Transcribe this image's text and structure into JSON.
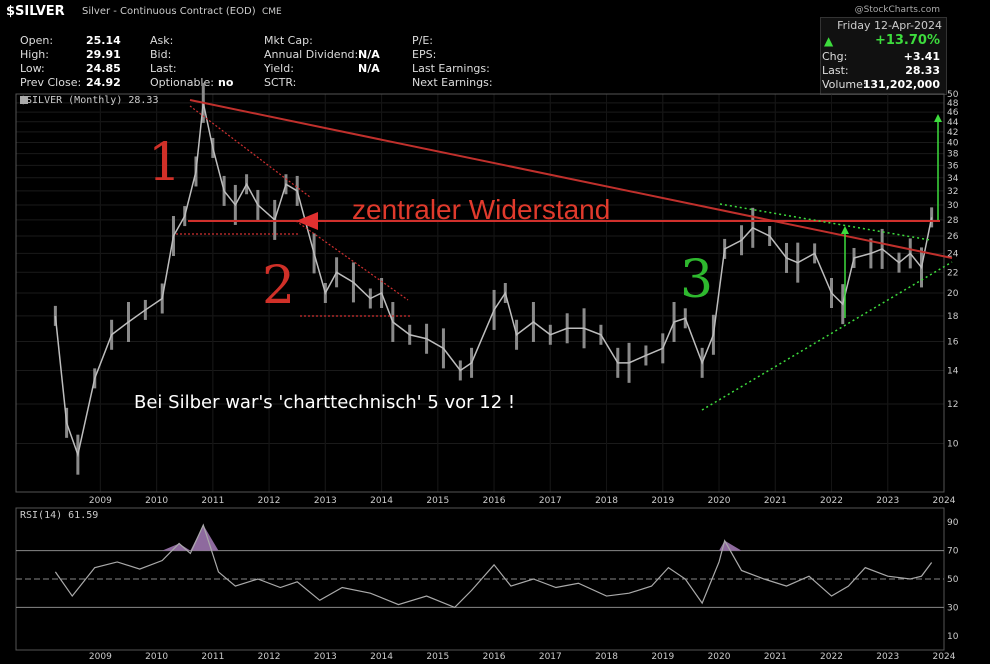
{
  "header": {
    "ticker": "$SILVER",
    "contract": "Silver - Continuous Contract (EOD)",
    "exchange": "CME",
    "logo": "@StockCharts.com",
    "date": "Friday  12-Apr-2024",
    "pct_change": "+13.70%",
    "up_icon": "triangle-up-icon",
    "labels": {
      "open": "Open:",
      "high": "High:",
      "low": "Low:",
      "prev_close": "Prev Close:",
      "ask": "Ask:",
      "bid": "Bid:",
      "last": "Last:",
      "optionable": "Optionable:",
      "mkt_cap": "Mkt Cap:",
      "annual_dividend": "Annual Dividend:",
      "yield": "Yield:",
      "sctr": "SCTR:",
      "pe": "P/E:",
      "eps": "EPS:",
      "last_earnings": "Last Earnings:",
      "next_earnings": "Next Earnings:",
      "chg": "Chg:",
      "last2": "Last:",
      "volume": "Volume:"
    },
    "values": {
      "open": "25.14",
      "high": "29.91",
      "low": "24.85",
      "prev_close": "24.92",
      "optionable": "no",
      "annual_dividend": "N/A",
      "yield": "N/A",
      "chg": "+3.41",
      "last": "28.33",
      "volume": "131,202,000"
    }
  },
  "chart_data": [
    {
      "type": "line",
      "legend": "$SILVER (Monthly) 28.33",
      "y_scale": "log",
      "ylim": [
        8,
        50
      ],
      "y_ticks": [
        10,
        12,
        14,
        16,
        18,
        20,
        22,
        24,
        26,
        28,
        30,
        32,
        34,
        36,
        38,
        40,
        42,
        44,
        46,
        48,
        50
      ],
      "x_ticks": [
        "2009",
        "2010",
        "2011",
        "2012",
        "2013",
        "2014",
        "2015",
        "2016",
        "2017",
        "2018",
        "2019",
        "2020",
        "2021",
        "2022",
        "2023",
        "2024"
      ],
      "x": [
        2008.7,
        2008.9,
        2009.1,
        2009.4,
        2009.7,
        2010.0,
        2010.3,
        2010.6,
        2010.8,
        2011.0,
        2011.2,
        2011.33,
        2011.5,
        2011.7,
        2011.9,
        2012.1,
        2012.3,
        2012.6,
        2012.8,
        2013.0,
        2013.3,
        2013.5,
        2013.7,
        2014.0,
        2014.3,
        2014.5,
        2014.7,
        2015.0,
        2015.3,
        2015.6,
        2015.9,
        2016.1,
        2016.5,
        2016.7,
        2016.9,
        2017.2,
        2017.5,
        2017.8,
        2018.1,
        2018.4,
        2018.7,
        2018.9,
        2019.2,
        2019.5,
        2019.7,
        2019.9,
        2020.2,
        2020.4,
        2020.6,
        2020.9,
        2021.1,
        2021.4,
        2021.7,
        2021.9,
        2022.2,
        2022.5,
        2022.7,
        2022.9,
        2023.2,
        2023.4,
        2023.7,
        2023.9,
        2024.1,
        2024.28
      ],
      "values": [
        18,
        11,
        9.5,
        13.5,
        16.5,
        17.5,
        18.5,
        19.5,
        26,
        28.5,
        35,
        48,
        39,
        32,
        30,
        33,
        30,
        28,
        33,
        32,
        24,
        20,
        22,
        21,
        19.5,
        20,
        17.5,
        16.5,
        16.2,
        15.5,
        14,
        14.5,
        18.5,
        20,
        16.5,
        17.5,
        16.5,
        17,
        17,
        16.5,
        14.5,
        14.5,
        15,
        15.5,
        17.5,
        17.8,
        14.5,
        16.5,
        24.5,
        25.5,
        27,
        26,
        23.5,
        23,
        24,
        20,
        19,
        23.5,
        24,
        24.5,
        23,
        24,
        22.5,
        28.33
      ],
      "annotations": [
        "1",
        "2",
        "3",
        "zentraler Widerstand",
        "Bei Silber war's 'charttechnisch' 5 vor 12 !"
      ]
    },
    {
      "type": "line",
      "legend": "RSI(14) 61.59",
      "ylim": [
        0,
        100
      ],
      "y_ticks": [
        10,
        30,
        50,
        70,
        90
      ],
      "x_ticks": [
        "2009",
        "2010",
        "2011",
        "2012",
        "2013",
        "2014",
        "2015",
        "2016",
        "2017",
        "2018",
        "2019",
        "2020",
        "2021",
        "2022",
        "2023",
        "2024"
      ],
      "x": [
        2008.7,
        2009.0,
        2009.4,
        2009.8,
        2010.2,
        2010.6,
        2010.9,
        2011.1,
        2011.33,
        2011.6,
        2011.9,
        2012.3,
        2012.7,
        2013.0,
        2013.4,
        2013.8,
        2014.3,
        2014.8,
        2015.3,
        2015.8,
        2016.1,
        2016.5,
        2016.8,
        2017.2,
        2017.6,
        2018.0,
        2018.5,
        2018.9,
        2019.3,
        2019.6,
        2019.9,
        2020.2,
        2020.5,
        2020.6,
        2020.9,
        2021.3,
        2021.7,
        2022.1,
        2022.5,
        2022.8,
        2023.1,
        2023.5,
        2023.9,
        2024.1,
        2024.28
      ],
      "values": [
        55,
        38,
        58,
        62,
        57,
        63,
        75,
        68,
        88,
        55,
        45,
        50,
        44,
        48,
        35,
        44,
        40,
        32,
        38,
        30,
        42,
        60,
        45,
        50,
        44,
        47,
        38,
        40,
        45,
        58,
        50,
        33,
        62,
        77,
        56,
        50,
        45,
        52,
        38,
        45,
        58,
        52,
        50,
        52,
        61.59
      ]
    }
  ]
}
